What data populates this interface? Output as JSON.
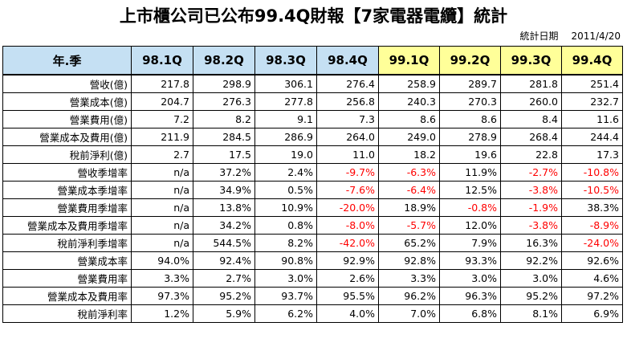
{
  "title": "上市櫃公司已公布99.4Q財報【7家電器電纜】統計",
  "stat_date": {
    "label": "統計日期",
    "value": "2011/4/20"
  },
  "table": {
    "corner_header": "年.季",
    "columns": [
      "98.1Q",
      "98.2Q",
      "98.3Q",
      "98.4Q",
      "99.1Q",
      "99.2Q",
      "99.3Q",
      "99.4Q"
    ],
    "highlight_color_98": "#c5e0f3",
    "highlight_color_99": "#ffff99",
    "negative_color": "#ff0000",
    "rows": [
      {
        "label": "營收(億)",
        "values": [
          "217.8",
          "298.9",
          "306.1",
          "276.4",
          "258.9",
          "289.7",
          "281.8",
          "251.4"
        ]
      },
      {
        "label": "營業成本(億)",
        "values": [
          "204.7",
          "276.3",
          "277.8",
          "256.8",
          "240.3",
          "270.3",
          "260.0",
          "232.7"
        ]
      },
      {
        "label": "營業費用(億)",
        "values": [
          "7.2",
          "8.2",
          "9.1",
          "7.3",
          "8.6",
          "8.6",
          "8.4",
          "11.6"
        ]
      },
      {
        "label": "營業成本及費用(億)",
        "values": [
          "211.9",
          "284.5",
          "286.9",
          "264.0",
          "249.0",
          "278.9",
          "268.4",
          "244.4"
        ]
      },
      {
        "label": "稅前淨利(億)",
        "values": [
          "2.7",
          "17.5",
          "19.0",
          "11.0",
          "18.2",
          "19.6",
          "22.8",
          "17.3"
        ]
      },
      {
        "label": "營收季增率",
        "values": [
          "n/a",
          "37.2%",
          "2.4%",
          "-9.7%",
          "-6.3%",
          "11.9%",
          "-2.7%",
          "-10.8%"
        ]
      },
      {
        "label": "營業成本季增率",
        "values": [
          "n/a",
          "34.9%",
          "0.5%",
          "-7.6%",
          "-6.4%",
          "12.5%",
          "-3.8%",
          "-10.5%"
        ]
      },
      {
        "label": "營業費用季增率",
        "values": [
          "n/a",
          "13.8%",
          "10.9%",
          "-20.0%",
          "18.9%",
          "-0.8%",
          "-1.9%",
          "38.3%"
        ]
      },
      {
        "label": "營業成本及費用季增率",
        "values": [
          "n/a",
          "34.2%",
          "0.8%",
          "-8.0%",
          "-5.7%",
          "12.0%",
          "-3.8%",
          "-8.9%"
        ]
      },
      {
        "label": "稅前淨利季增率",
        "values": [
          "n/a",
          "544.5%",
          "8.2%",
          "-42.0%",
          "65.2%",
          "7.9%",
          "16.3%",
          "-24.0%"
        ]
      },
      {
        "label": "營業成本率",
        "values": [
          "94.0%",
          "92.4%",
          "90.8%",
          "92.9%",
          "92.8%",
          "93.3%",
          "92.2%",
          "92.6%"
        ]
      },
      {
        "label": "營業費用率",
        "values": [
          "3.3%",
          "2.7%",
          "3.0%",
          "2.6%",
          "3.3%",
          "3.0%",
          "3.0%",
          "4.6%"
        ]
      },
      {
        "label": "營業成本及費用率",
        "values": [
          "97.3%",
          "95.2%",
          "93.7%",
          "95.5%",
          "96.2%",
          "96.3%",
          "95.2%",
          "97.2%"
        ]
      },
      {
        "label": "稅前淨利率",
        "values": [
          "1.2%",
          "5.9%",
          "6.2%",
          "4.0%",
          "7.0%",
          "6.8%",
          "8.1%",
          "6.9%"
        ]
      }
    ]
  }
}
